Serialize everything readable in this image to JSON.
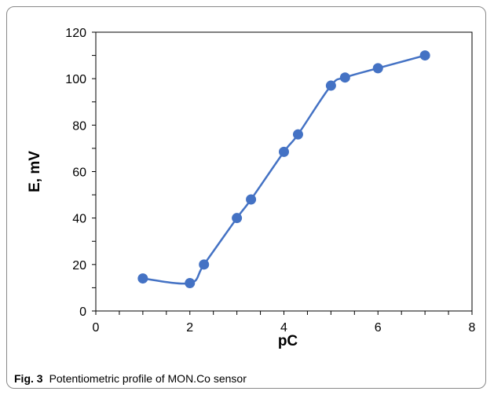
{
  "chart_data": {
    "type": "line",
    "xlabel": "pC",
    "ylabel": "E, mV",
    "xlim": [
      0,
      8
    ],
    "ylim": [
      0,
      120
    ],
    "x_ticks": [
      0,
      2,
      4,
      6,
      8
    ],
    "y_ticks": [
      0,
      20,
      40,
      60,
      80,
      100,
      120
    ],
    "grid": false,
    "legend": "none",
    "series": [
      {
        "x": [
          1,
          2,
          2.3,
          3,
          3.3,
          4,
          4.3,
          5,
          5.3,
          6,
          7
        ],
        "y": [
          14,
          12,
          20,
          40,
          48,
          68.5,
          76,
          97,
          100.5,
          104.5,
          110
        ],
        "color": "#4472C4"
      }
    ]
  },
  "caption": {
    "label": "Fig. 3",
    "text": "Potentiometric profile of MON.Co sensor"
  }
}
